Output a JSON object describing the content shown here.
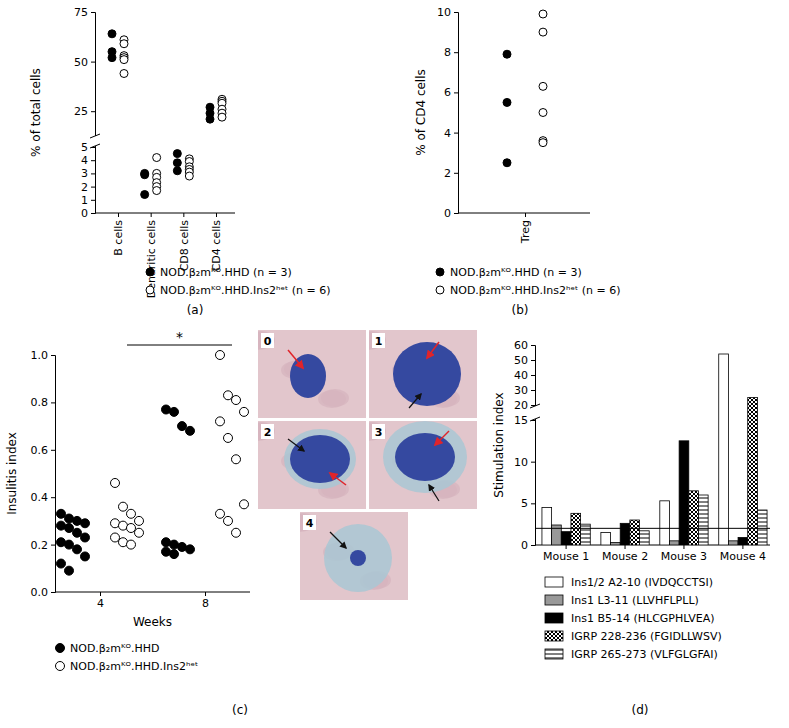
{
  "chart_data": [
    {
      "type": "scatter",
      "title": "(a)",
      "ylabel": "% of total cells",
      "categories": [
        "B cells",
        "Dendritic cells",
        "CD8 cells",
        "CD4 cells"
      ],
      "ylim": [
        0,
        75
      ],
      "ybreak": [
        5,
        13
      ],
      "yticks": [
        0,
        1,
        2,
        3,
        4,
        5,
        25,
        50,
        75
      ],
      "legend": "bottom",
      "series": [
        {
          "name": "NOD.β₂mᴷᴼ.HHD (n = 3)",
          "color": "#000000",
          "marker": "circle",
          "values": [
            [
              64,
              55,
              52
            ],
            [
              3.0,
              2.9,
              1.4
            ],
            [
              4.5,
              3.8,
              3.2
            ],
            [
              27,
              24,
              21
            ]
          ]
        },
        {
          "name": "NOD.β₂mᴷᴼ.HHD.Ins2ʰᵉᵗ (n = 6)",
          "color": "#ffffff",
          "marker": "circle",
          "values": [
            [
              61,
              59,
              53,
              52,
              51,
              44
            ],
            [
              4.2,
              3.0,
              2.7,
              2.3,
              2.0,
              1.7
            ],
            [
              4.1,
              3.9,
              3.5,
              3.3,
              3.1,
              2.8
            ],
            [
              31,
              30,
              29,
              26,
              24,
              22
            ]
          ]
        }
      ]
    },
    {
      "type": "scatter",
      "title": "(b)",
      "ylabel": "% of CD4 cells",
      "categories": [
        "Treg"
      ],
      "ylim": [
        0,
        10
      ],
      "yticks": [
        0,
        2,
        4,
        6,
        8,
        10
      ],
      "legend": "bottom",
      "series": [
        {
          "name": "NOD.β₂mᴷᴼ.HHD (n = 3)",
          "color": "#000000",
          "marker": "circle",
          "values": [
            [
              7.9,
              5.5,
              2.5
            ]
          ]
        },
        {
          "name": "NOD.β₂mᴷᴼ.HHD.Ins2ʰᵉᵗ (n = 6)",
          "color": "#ffffff",
          "marker": "circle",
          "values": [
            [
              9.9,
              9.0,
              6.3,
              5.0,
              3.6,
              3.5
            ]
          ]
        }
      ]
    },
    {
      "type": "scatter",
      "title": "(c)",
      "ylabel": "Insulitis index",
      "xlabel": "Weeks",
      "categories": [
        "4",
        "8"
      ],
      "ylim": [
        0,
        1
      ],
      "yticks": [
        {
          "value": 0,
          "label": "0.0"
        },
        0.2,
        0.4,
        0.6,
        0.8,
        {
          "value": 1,
          "label": "1.0"
        }
      ],
      "annotations": [
        "*"
      ],
      "legend": "bottom",
      "series": [
        {
          "name": "NOD.β₂mᴷᴼ.HHD",
          "color": "#000000",
          "marker": "circle",
          "values": [
            [
              0.33,
              0.31,
              0.3,
              0.29,
              0.28,
              0.27,
              0.25,
              0.23,
              0.21,
              0.2,
              0.18,
              0.15,
              0.12,
              0.09
            ],
            [
              0.77,
              0.76,
              0.7,
              0.68,
              0.21,
              0.2,
              0.19,
              0.18,
              0.17,
              0.16
            ]
          ]
        },
        {
          "name": "NOD.β₂mᴷᴼ.HHD.Ins2ʰᵉᵗ",
          "color": "#ffffff",
          "marker": "circle",
          "values": [
            [
              0.46,
              0.36,
              0.33,
              0.3,
              0.29,
              0.28,
              0.27,
              0.25,
              0.23,
              0.21,
              0.2
            ],
            [
              1.0,
              0.83,
              0.81,
              0.76,
              0.72,
              0.65,
              0.56,
              0.37,
              0.33,
              0.3,
              0.25
            ]
          ]
        }
      ]
    },
    {
      "type": "bar",
      "title": "(d)",
      "ylabel": "Stimulation index",
      "categories": [
        "Mouse 1",
        "Mouse 2",
        "Mouse 3",
        "Mouse 4"
      ],
      "ylim": [
        0,
        60
      ],
      "ybreak": [
        15,
        20
      ],
      "yticks": [
        0,
        5,
        10,
        15,
        20,
        30,
        40,
        50,
        60
      ],
      "threshold": 2,
      "legend": "bottom",
      "series": [
        {
          "name": "Ins1/2 A2-10 (IVDQCCTSI)",
          "color": "#ffffff",
          "values": [
            4.5,
            1.5,
            5.3,
            54
          ]
        },
        {
          "name": "Ins1 L3-11 (LLVHFLPLL)",
          "color": "#999999",
          "values": [
            2.4,
            0.3,
            0.5,
            0.5
          ]
        },
        {
          "name": "Ins1 B5-14 (HLCGPHLVEA)",
          "color": "#000000",
          "values": [
            1.6,
            2.6,
            12.5,
            0.9
          ]
        },
        {
          "name": "IGRP 228-236 (FGIDLLWSV)",
          "color": "#ffffff",
          "values": [
            3.8,
            3.0,
            6.5,
            25
          ]
        },
        {
          "name": "IGRP 265-273 (VLFGLGFAI)",
          "color": "#ffffff",
          "values": [
            2.5,
            1.7,
            6.0,
            4.2
          ]
        }
      ]
    }
  ],
  "images": {
    "labels": [
      "0",
      "1",
      "2",
      "3",
      "4"
    ]
  }
}
